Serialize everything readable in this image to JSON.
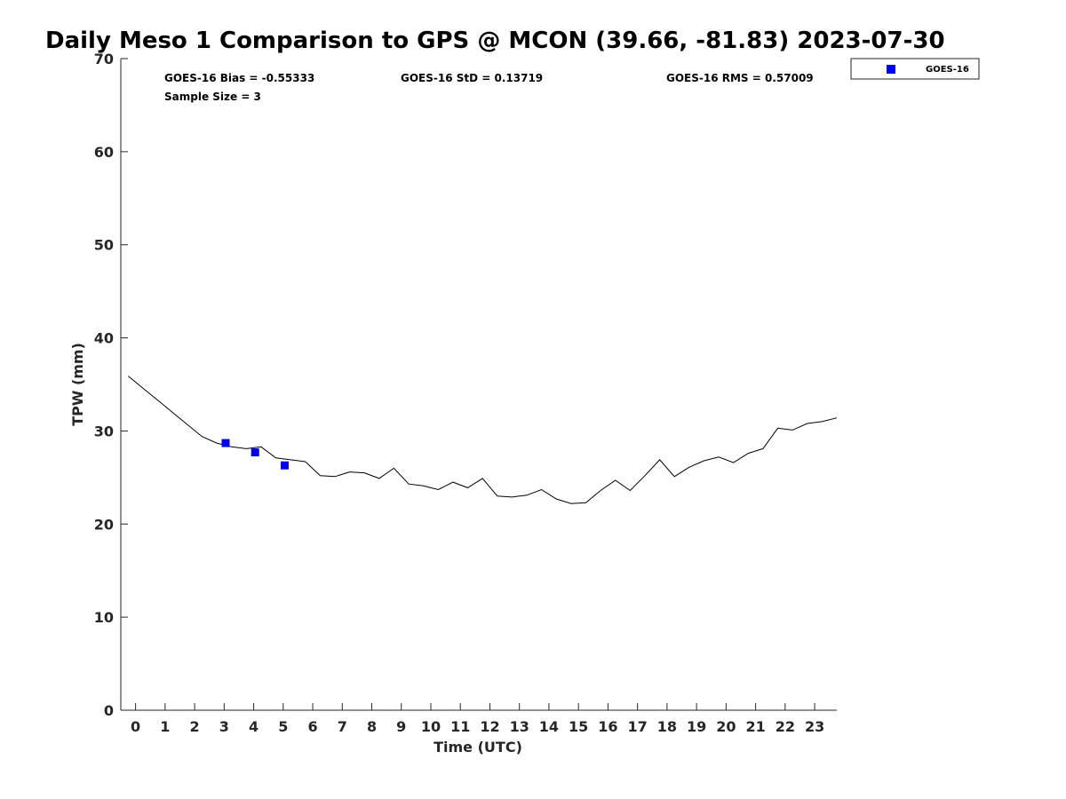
{
  "chart_data": {
    "type": "line",
    "title": "Daily Meso 1 Comparison to GPS @ MCON (39.66, -81.83) 2023-07-30",
    "xlabel": "Time (UTC)",
    "ylabel": "TPW (mm)",
    "xlim": [
      -0.5,
      23.75
    ],
    "ylim": [
      0,
      70
    ],
    "x_ticks": [
      0,
      1,
      2,
      3,
      4,
      5,
      6,
      7,
      8,
      9,
      10,
      11,
      12,
      13,
      14,
      15,
      16,
      17,
      18,
      19,
      20,
      21,
      22,
      23
    ],
    "y_ticks": [
      0,
      10,
      20,
      30,
      40,
      50,
      60,
      70
    ],
    "grid": false,
    "legend_position": "top-right, outside",
    "stats": {
      "bias": "GOES-16 Bias = -0.55333",
      "std": "GOES-16 StD = 0.13719",
      "rms": "GOES-16 RMS = 0.57009",
      "sample_size": "Sample Size = 3"
    },
    "series": [
      {
        "name": "",
        "kind": "line",
        "color": "#000000",
        "points": [
          [
            -0.25,
            35.9
          ],
          [
            0.25,
            34.6
          ],
          [
            0.75,
            33.3
          ],
          [
            1.25,
            32.0
          ],
          [
            1.75,
            30.7
          ],
          [
            2.25,
            29.4
          ],
          [
            2.75,
            28.7
          ],
          [
            3.25,
            28.3
          ],
          [
            3.75,
            28.1
          ],
          [
            4.25,
            28.3
          ],
          [
            4.75,
            27.1
          ],
          [
            5.25,
            26.9
          ],
          [
            5.75,
            26.7
          ],
          [
            6.25,
            25.2
          ],
          [
            6.75,
            25.1
          ],
          [
            7.25,
            25.6
          ],
          [
            7.75,
            25.5
          ],
          [
            8.25,
            24.9
          ],
          [
            8.75,
            26.0
          ],
          [
            9.25,
            24.3
          ],
          [
            9.75,
            24.1
          ],
          [
            10.25,
            23.7
          ],
          [
            10.75,
            24.5
          ],
          [
            11.25,
            23.9
          ],
          [
            11.75,
            24.9
          ],
          [
            12.25,
            23.0
          ],
          [
            12.75,
            22.9
          ],
          [
            13.25,
            23.1
          ],
          [
            13.75,
            23.7
          ],
          [
            14.25,
            22.7
          ],
          [
            14.75,
            22.2
          ],
          [
            15.25,
            22.3
          ],
          [
            15.75,
            23.6
          ],
          [
            16.25,
            24.7
          ],
          [
            16.75,
            23.6
          ],
          [
            17.25,
            25.2
          ],
          [
            17.75,
            26.9
          ],
          [
            18.25,
            25.1
          ],
          [
            18.75,
            26.1
          ],
          [
            19.25,
            26.8
          ],
          [
            19.75,
            27.2
          ],
          [
            20.25,
            26.6
          ],
          [
            20.75,
            27.6
          ],
          [
            21.25,
            28.1
          ],
          [
            21.75,
            30.3
          ],
          [
            22.25,
            30.1
          ],
          [
            22.75,
            30.8
          ],
          [
            23.25,
            31.0
          ],
          [
            23.75,
            31.4
          ]
        ]
      },
      {
        "name": "GOES-16",
        "kind": "scatter",
        "color": "#0000ee",
        "points": [
          [
            3.05,
            28.7
          ],
          [
            4.05,
            27.7
          ],
          [
            5.05,
            26.3
          ]
        ]
      }
    ]
  }
}
